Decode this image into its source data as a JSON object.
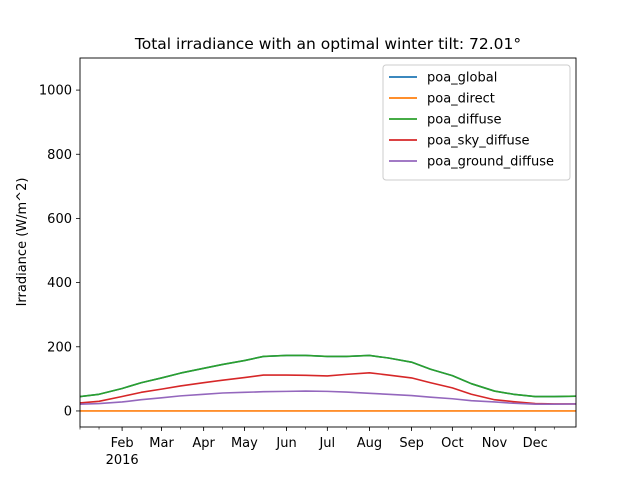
{
  "chart_data": {
    "type": "line",
    "title": "Total irradiance with an optimal winter tilt: 72.01°",
    "xlabel": "",
    "ylabel": "Irradiance (W/m^2)",
    "ylim": [
      -50,
      1100
    ],
    "xlim": [
      "2016-01-01",
      "2016-12-31"
    ],
    "grid": false,
    "legend_position": "top-right",
    "x_tick_labels": [
      "Feb",
      "Mar",
      "Apr",
      "May",
      "Jun",
      "Jul",
      "Aug",
      "Sep",
      "Oct",
      "Nov",
      "Dec"
    ],
    "x_tick_dates": [
      "2016-02-01",
      "2016-03-01",
      "2016-04-01",
      "2016-05-01",
      "2016-06-01",
      "2016-07-01",
      "2016-08-01",
      "2016-09-01",
      "2016-10-01",
      "2016-11-01",
      "2016-12-01"
    ],
    "x_offset_label": "2016",
    "y_ticks": [
      0,
      200,
      400,
      600,
      800,
      1000
    ],
    "x": [
      "2016-01-01",
      "2016-01-15",
      "2016-02-01",
      "2016-02-15",
      "2016-03-01",
      "2016-03-15",
      "2016-04-01",
      "2016-04-15",
      "2016-05-01",
      "2016-05-15",
      "2016-06-01",
      "2016-06-15",
      "2016-07-01",
      "2016-07-15",
      "2016-08-01",
      "2016-08-15",
      "2016-09-01",
      "2016-09-15",
      "2016-10-01",
      "2016-10-15",
      "2016-11-01",
      "2016-11-15",
      "2016-12-01",
      "2016-12-15",
      "2016-12-31"
    ],
    "series": [
      {
        "name": "poa_global",
        "color": "#1f77b4",
        "values": [
          45,
          52,
          70,
          88,
          103,
          118,
          133,
          145,
          157,
          170,
          173,
          173,
          170,
          170,
          173,
          165,
          152,
          130,
          110,
          85,
          62,
          52,
          45,
          45,
          46
        ]
      },
      {
        "name": "poa_direct",
        "color": "#ff7f0e",
        "values": [
          0,
          0,
          0,
          0,
          0,
          0,
          0,
          0,
          0,
          0,
          0,
          0,
          0,
          0,
          0,
          0,
          0,
          0,
          0,
          0,
          0,
          0,
          0,
          0,
          0
        ]
      },
      {
        "name": "poa_diffuse",
        "color": "#2ca02c",
        "values": [
          45,
          52,
          70,
          88,
          103,
          118,
          133,
          145,
          157,
          170,
          173,
          173,
          170,
          170,
          173,
          165,
          152,
          130,
          110,
          85,
          62,
          52,
          45,
          45,
          46
        ]
      },
      {
        "name": "poa_sky_diffuse",
        "color": "#d62728",
        "values": [
          25,
          30,
          45,
          58,
          68,
          78,
          88,
          96,
          104,
          112,
          112,
          111,
          109,
          114,
          119,
          112,
          103,
          88,
          72,
          52,
          35,
          29,
          23,
          22,
          22
        ]
      },
      {
        "name": "poa_ground_diffuse",
        "color": "#9467bd",
        "values": [
          21,
          23,
          28,
          35,
          41,
          47,
          52,
          56,
          58,
          60,
          61,
          62,
          61,
          59,
          55,
          52,
          48,
          43,
          38,
          32,
          28,
          24,
          21,
          21,
          22
        ]
      }
    ]
  }
}
